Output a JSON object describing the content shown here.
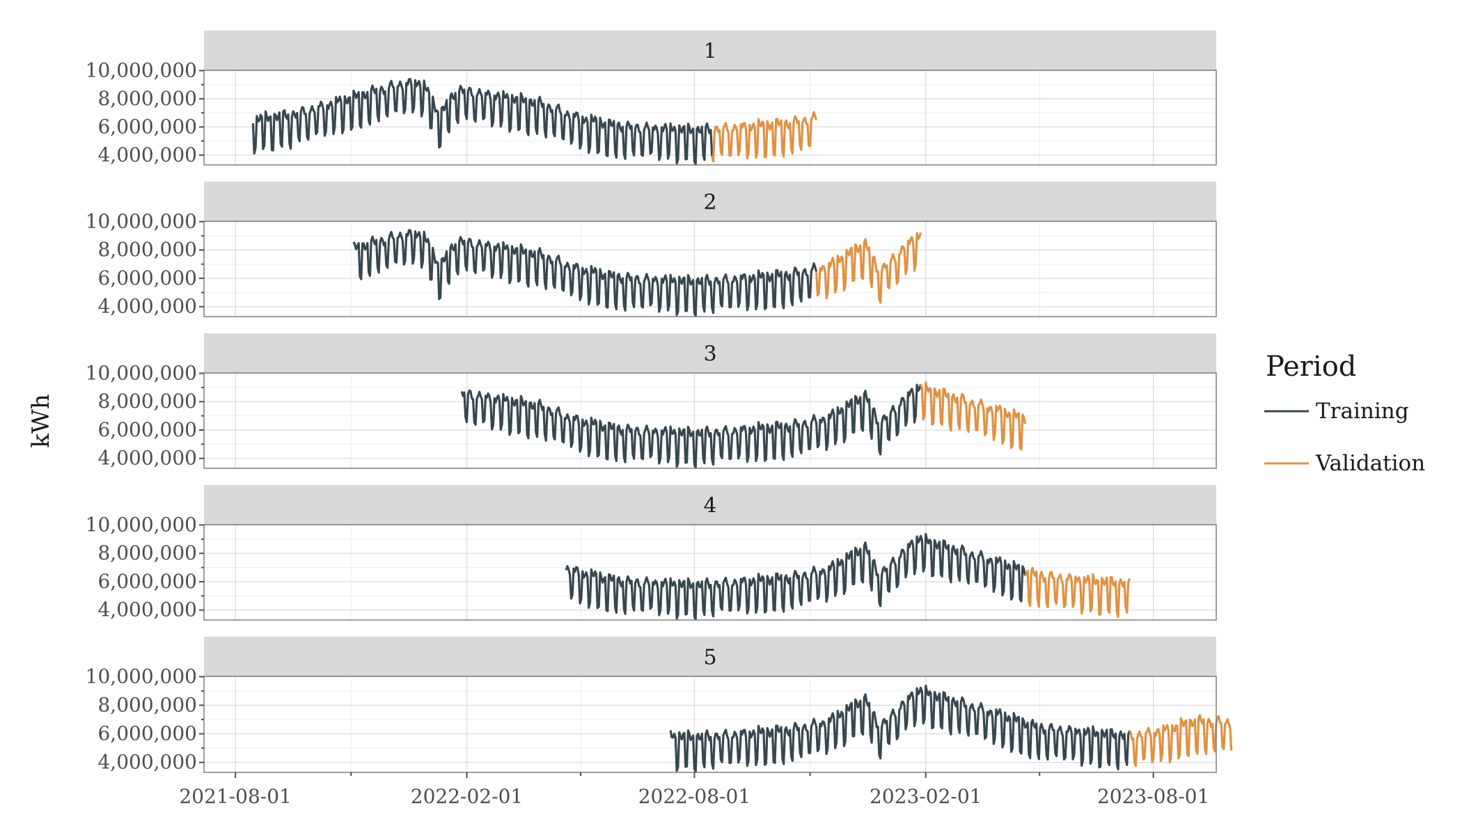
{
  "chart_data": {
    "type": "line",
    "facets": [
      "1",
      "2",
      "3",
      "4",
      "5"
    ],
    "ylabel": "kWh",
    "xlabel": "",
    "x_ticks": [
      "2021-08-01",
      "2022-02-01",
      "2022-08-01",
      "2023-02-01",
      "2023-08-01"
    ],
    "x_range": [
      "2021-07-07",
      "2023-09-20"
    ],
    "y_ticks": [
      4000000,
      6000000,
      8000000,
      10000000
    ],
    "y_tick_labels": [
      "4,000,000",
      "6,000,000",
      "8,000,000",
      "10,000,000"
    ],
    "ylim": [
      3300000,
      10000000
    ],
    "grid": true,
    "legend": {
      "title": "Period",
      "placement": "right",
      "entries": [
        {
          "name": "Training",
          "color": "#37474f"
        },
        {
          "name": "Validation",
          "color": "#e09142"
        }
      ]
    },
    "level_profile": [
      {
        "x": "2021-08-01",
        "y": 5500000
      },
      {
        "x": "2021-09-15",
        "y": 6000000
      },
      {
        "x": "2021-11-01",
        "y": 7200000
      },
      {
        "x": "2021-12-10",
        "y": 8200000
      },
      {
        "x": "2021-12-28",
        "y": 8300000
      },
      {
        "x": "2022-01-10",
        "y": 6000000
      },
      {
        "x": "2022-01-25",
        "y": 7800000
      },
      {
        "x": "2022-03-01",
        "y": 7300000
      },
      {
        "x": "2022-04-01",
        "y": 6800000
      },
      {
        "x": "2022-05-01",
        "y": 5800000
      },
      {
        "x": "2022-06-01",
        "y": 5200000
      },
      {
        "x": "2022-07-15",
        "y": 5000000
      },
      {
        "x": "2022-08-01",
        "y": 4900000
      },
      {
        "x": "2022-09-01",
        "y": 5100000
      },
      {
        "x": "2022-10-15",
        "y": 5400000
      },
      {
        "x": "2022-11-15",
        "y": 6000000
      },
      {
        "x": "2022-12-15",
        "y": 7600000
      },
      {
        "x": "2022-12-26",
        "y": 5600000
      },
      {
        "x": "2023-01-25",
        "y": 8200000
      },
      {
        "x": "2023-03-01",
        "y": 7300000
      },
      {
        "x": "2023-04-01",
        "y": 6500000
      },
      {
        "x": "2023-05-01",
        "y": 5600000
      },
      {
        "x": "2023-06-15",
        "y": 5200000
      },
      {
        "x": "2023-07-15",
        "y": 5000000
      },
      {
        "x": "2023-08-15",
        "y": 5500000
      },
      {
        "x": "2023-09-01",
        "y": 6000000
      }
    ],
    "weekly_amplitude": 2400000,
    "panels": [
      {
        "facet": "1",
        "training": [
          "2021-08-15",
          "2022-08-15"
        ],
        "validation": [
          "2022-08-15",
          "2022-11-06"
        ]
      },
      {
        "facet": "2",
        "training": [
          "2021-11-03",
          "2022-11-06"
        ],
        "validation": [
          "2022-11-06",
          "2023-01-28"
        ]
      },
      {
        "facet": "3",
        "training": [
          "2022-01-28",
          "2023-01-28"
        ],
        "validation": [
          "2023-01-28",
          "2023-04-21"
        ]
      },
      {
        "facet": "4",
        "training": [
          "2022-04-21",
          "2023-04-21"
        ],
        "validation": [
          "2023-04-21",
          "2023-07-13"
        ]
      },
      {
        "facet": "5",
        "training": [
          "2022-07-13",
          "2023-07-13"
        ],
        "validation": [
          "2023-07-13",
          "2023-10-02"
        ]
      }
    ]
  }
}
